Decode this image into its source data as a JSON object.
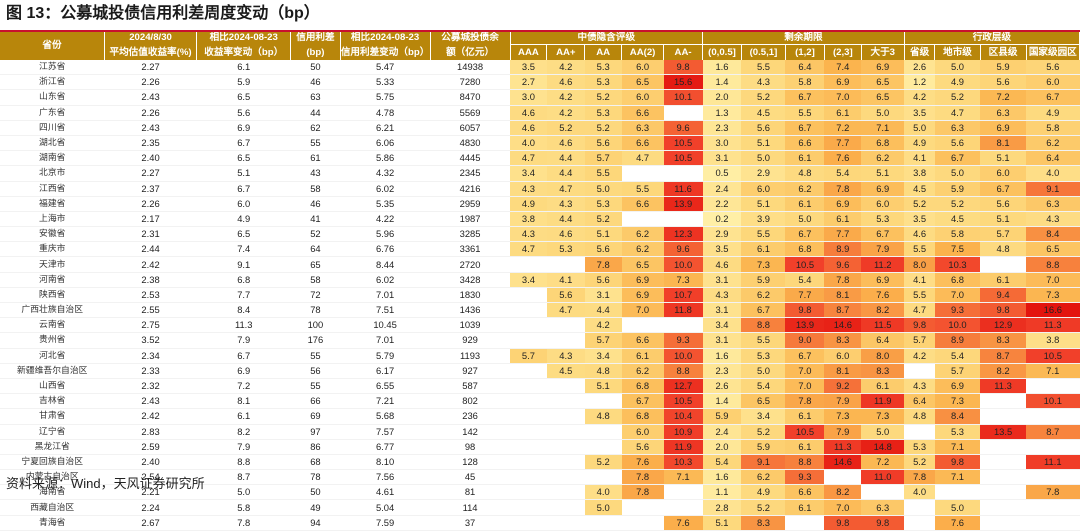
{
  "title": "图 13：公募城投债信用利差周度变动（bp）",
  "source": "资料来源：Wind，天风证券研究所",
  "header": {
    "province": "省份",
    "col_yield_date": "2024/8/30",
    "col_yield_sub": "平均估值收益率(%)",
    "col_yield_chg_date": "相比2024-08-23",
    "col_yield_chg_sub": "收益率变动（bp）",
    "col_spread_date": "信用利差",
    "col_spread_sub": "(bp)",
    "col_spread_chg_date": "相比2024-08-23",
    "col_spread_chg_sub": "信用利差变动（bp）",
    "col_balance_date": "公募城投债余",
    "col_balance_sub": "额（亿元）",
    "group_rating": "中债隐含评级",
    "group_term": "剩余期限",
    "group_admin": "行政层级",
    "rating_cols": [
      "AAA",
      "AA+",
      "AA",
      "AA(2)",
      "AA-"
    ],
    "term_cols": [
      "(0,0.5]",
      "(0.5,1]",
      "(1,2]",
      "(2,3]",
      "大于3"
    ],
    "admin_cols": [
      "省级",
      "地市级",
      "区县级",
      "国家级园区"
    ]
  },
  "colors": {
    "header_bg": "#b8860b",
    "title_rule": "#c8102e",
    "heat_low": "#fff0a8",
    "heat_mid": "#fbb24c",
    "heat_high": "#f1402a",
    "heat_max": "#e3140e"
  },
  "rows": [
    {
      "prov": "江苏省",
      "y": "2.27",
      "yc": "6.1",
      "s": "50",
      "sc": "5.47",
      "b": "14938",
      "r": [
        "3.5",
        "4.2",
        "5.3",
        "6.0",
        "9.8"
      ],
      "t": [
        "1.6",
        "5.5",
        "6.4",
        "7.4",
        "6.9"
      ],
      "a": [
        "2.6",
        "5.0",
        "5.9",
        "5.6"
      ]
    },
    {
      "prov": "浙江省",
      "y": "2.26",
      "yc": "5.9",
      "s": "46",
      "sc": "5.33",
      "b": "7280",
      "r": [
        "2.7",
        "4.6",
        "5.3",
        "6.5",
        "15.6"
      ],
      "t": [
        "1.4",
        "4.3",
        "5.8",
        "6.9",
        "6.5"
      ],
      "a": [
        "1.2",
        "4.9",
        "5.6",
        "6.0"
      ]
    },
    {
      "prov": "山东省",
      "y": "2.43",
      "yc": "6.5",
      "s": "63",
      "sc": "5.75",
      "b": "8470",
      "r": [
        "3.0",
        "4.2",
        "5.2",
        "6.0",
        "10.1"
      ],
      "t": [
        "2.0",
        "5.2",
        "6.7",
        "7.0",
        "6.5"
      ],
      "a": [
        "4.2",
        "5.2",
        "7.2",
        "6.7"
      ]
    },
    {
      "prov": "广东省",
      "y": "2.26",
      "yc": "5.6",
      "s": "44",
      "sc": "4.78",
      "b": "5569",
      "r": [
        "4.6",
        "4.2",
        "5.3",
        "6.6",
        ""
      ],
      "t": [
        "1.3",
        "4.5",
        "5.5",
        "6.1",
        "5.0"
      ],
      "a": [
        "3.5",
        "4.7",
        "6.3",
        "4.9"
      ]
    },
    {
      "prov": "四川省",
      "y": "2.43",
      "yc": "6.9",
      "s": "62",
      "sc": "6.21",
      "b": "6057",
      "r": [
        "4.6",
        "5.2",
        "5.2",
        "6.3",
        "9.6"
      ],
      "t": [
        "2.3",
        "5.6",
        "6.7",
        "7.2",
        "7.1"
      ],
      "a": [
        "5.0",
        "6.3",
        "6.9",
        "5.8"
      ]
    },
    {
      "prov": "湖北省",
      "y": "2.35",
      "yc": "6.7",
      "s": "55",
      "sc": "6.06",
      "b": "4830",
      "r": [
        "4.0",
        "4.6",
        "5.6",
        "6.6",
        "10.5"
      ],
      "t": [
        "3.0",
        "5.1",
        "6.6",
        "7.7",
        "6.8"
      ],
      "a": [
        "4.9",
        "5.6",
        "8.1",
        "6.2"
      ]
    },
    {
      "prov": "湖南省",
      "y": "2.40",
      "yc": "6.5",
      "s": "61",
      "sc": "5.86",
      "b": "4445",
      "r": [
        "4.7",
        "4.4",
        "5.7",
        "4.7",
        "10.5"
      ],
      "t": [
        "3.1",
        "5.0",
        "6.1",
        "7.6",
        "6.2"
      ],
      "a": [
        "4.1",
        "6.7",
        "5.1",
        "6.4"
      ]
    },
    {
      "prov": "北京市",
      "y": "2.27",
      "yc": "5.1",
      "s": "43",
      "sc": "4.32",
      "b": "2345",
      "r": [
        "3.4",
        "4.4",
        "5.5",
        "",
        ""
      ],
      "t": [
        "0.5",
        "2.9",
        "4.8",
        "5.4",
        "5.1"
      ],
      "a": [
        "3.8",
        "5.0",
        "6.0",
        "4.0"
      ]
    },
    {
      "prov": "江西省",
      "y": "2.37",
      "yc": "6.7",
      "s": "58",
      "sc": "6.02",
      "b": "4216",
      "r": [
        "4.3",
        "4.7",
        "5.0",
        "5.5",
        "11.6"
      ],
      "t": [
        "2.4",
        "6.0",
        "6.2",
        "7.8",
        "6.9"
      ],
      "a": [
        "4.5",
        "5.9",
        "6.7",
        "9.1"
      ]
    },
    {
      "prov": "福建省",
      "y": "2.26",
      "yc": "6.0",
      "s": "46",
      "sc": "5.35",
      "b": "2959",
      "r": [
        "4.9",
        "4.3",
        "5.3",
        "6.6",
        "13.9"
      ],
      "t": [
        "2.2",
        "5.1",
        "6.1",
        "6.9",
        "6.0"
      ],
      "a": [
        "5.2",
        "5.2",
        "5.6",
        "6.3"
      ]
    },
    {
      "prov": "上海市",
      "y": "2.17",
      "yc": "4.9",
      "s": "41",
      "sc": "4.22",
      "b": "1987",
      "r": [
        "3.8",
        "4.4",
        "5.2",
        "",
        ""
      ],
      "t": [
        "0.2",
        "3.9",
        "5.0",
        "6.1",
        "5.3"
      ],
      "a": [
        "3.5",
        "4.5",
        "5.1",
        "4.3"
      ]
    },
    {
      "prov": "安徽省",
      "y": "2.31",
      "yc": "6.5",
      "s": "52",
      "sc": "5.96",
      "b": "3285",
      "r": [
        "4.3",
        "4.6",
        "5.1",
        "6.2",
        "12.3"
      ],
      "t": [
        "2.9",
        "5.5",
        "6.7",
        "7.7",
        "6.7"
      ],
      "a": [
        "4.6",
        "5.8",
        "5.7",
        "8.4"
      ]
    },
    {
      "prov": "重庆市",
      "y": "2.44",
      "yc": "7.4",
      "s": "64",
      "sc": "6.76",
      "b": "3361",
      "r": [
        "4.7",
        "5.3",
        "5.6",
        "6.2",
        "9.6"
      ],
      "t": [
        "3.5",
        "6.1",
        "6.8",
        "8.9",
        "7.9"
      ],
      "a": [
        "5.5",
        "7.5",
        "4.8",
        "6.5"
      ]
    },
    {
      "prov": "天津市",
      "y": "2.42",
      "yc": "9.1",
      "s": "65",
      "sc": "8.44",
      "b": "2720",
      "r": [
        "",
        "",
        "7.8",
        "6.5",
        "10.0"
      ],
      "t": [
        "4.6",
        "7.3",
        "10.5",
        "9.6",
        "11.2"
      ],
      "a": [
        "8.0",
        "10.3",
        "",
        "8.8"
      ]
    },
    {
      "prov": "河南省",
      "y": "2.38",
      "yc": "6.8",
      "s": "58",
      "sc": "6.02",
      "b": "3428",
      "r": [
        "3.4",
        "4.1",
        "5.6",
        "6.9",
        "7.3"
      ],
      "t": [
        "3.1",
        "5.9",
        "5.4",
        "7.8",
        "6.9"
      ],
      "a": [
        "4.1",
        "6.8",
        "6.1",
        "7.0"
      ]
    },
    {
      "prov": "陕西省",
      "y": "2.53",
      "yc": "7.7",
      "s": "72",
      "sc": "7.01",
      "b": "1830",
      "r": [
        "",
        "5.6",
        "3.1",
        "6.9",
        "10.7"
      ],
      "t": [
        "4.3",
        "6.2",
        "7.7",
        "8.1",
        "7.6"
      ],
      "a": [
        "5.5",
        "7.0",
        "9.4",
        "7.3"
      ]
    },
    {
      "prov": "广西壮族自治区",
      "y": "2.55",
      "yc": "8.4",
      "s": "78",
      "sc": "7.51",
      "b": "1436",
      "r": [
        "",
        "4.7",
        "4.4",
        "7.0",
        "11.8"
      ],
      "t": [
        "3.1",
        "6.7",
        "9.8",
        "8.7",
        "8.2"
      ],
      "a": [
        "4.7",
        "9.3",
        "9.8",
        "16.6"
      ]
    },
    {
      "prov": "云南省",
      "y": "2.75",
      "yc": "11.3",
      "s": "100",
      "sc": "10.45",
      "b": "1039",
      "r": [
        "",
        "",
        "4.2",
        "",
        ""
      ],
      "t": [
        "3.4",
        "8.8",
        "13.9",
        "14.6",
        "11.5"
      ],
      "a": [
        "9.8",
        "10.0",
        "12.9",
        "11.3"
      ]
    },
    {
      "prov": "贵州省",
      "y": "3.52",
      "yc": "7.9",
      "s": "176",
      "sc": "7.01",
      "b": "929",
      "r": [
        "",
        "",
        "5.7",
        "6.6",
        "9.3"
      ],
      "t": [
        "3.1",
        "5.5",
        "9.0",
        "8.3",
        "6.4"
      ],
      "a": [
        "5.7",
        "8.9",
        "8.3",
        "3.8"
      ]
    },
    {
      "prov": "河北省",
      "y": "2.34",
      "yc": "6.7",
      "s": "55",
      "sc": "5.79",
      "b": "1193",
      "r": [
        "5.7",
        "4.3",
        "3.4",
        "6.1",
        "10.0"
      ],
      "t": [
        "1.6",
        "5.3",
        "6.7",
        "6.0",
        "8.0"
      ],
      "a": [
        "4.2",
        "5.4",
        "8.7",
        "10.5"
      ]
    },
    {
      "prov": "新疆维吾尔自治区",
      "y": "2.33",
      "yc": "6.9",
      "s": "56",
      "sc": "6.17",
      "b": "927",
      "r": [
        "",
        "4.5",
        "4.8",
        "6.2",
        "8.8"
      ],
      "t": [
        "2.3",
        "5.0",
        "7.0",
        "8.1",
        "8.3"
      ],
      "a": [
        "",
        "5.7",
        "8.2",
        "7.1"
      ]
    },
    {
      "prov": "山西省",
      "y": "2.32",
      "yc": "7.2",
      "s": "55",
      "sc": "6.55",
      "b": "587",
      "r": [
        "",
        "",
        "5.1",
        "6.8",
        "12.7"
      ],
      "t": [
        "2.6",
        "5.4",
        "7.0",
        "9.2",
        "6.1"
      ],
      "a": [
        "4.3",
        "6.9",
        "11.3",
        ""
      ]
    },
    {
      "prov": "吉林省",
      "y": "2.43",
      "yc": "8.1",
      "s": "66",
      "sc": "7.21",
      "b": "802",
      "r": [
        "",
        "",
        "",
        "6.7",
        "10.5"
      ],
      "t": [
        "1.4",
        "6.5",
        "7.8",
        "7.9",
        "11.9"
      ],
      "a": [
        "6.4",
        "7.3",
        "",
        "10.1"
      ]
    },
    {
      "prov": "甘肃省",
      "y": "2.42",
      "yc": "6.1",
      "s": "69",
      "sc": "5.68",
      "b": "236",
      "r": [
        "",
        "",
        "4.8",
        "6.8",
        "10.4"
      ],
      "t": [
        "5.9",
        "3.4",
        "6.1",
        "7.3",
        "7.3"
      ],
      "a": [
        "4.8",
        "8.4",
        "",
        ""
      ]
    },
    {
      "prov": "辽宁省",
      "y": "2.83",
      "yc": "8.2",
      "s": "97",
      "sc": "7.57",
      "b": "142",
      "r": [
        "",
        "",
        "",
        "6.0",
        "10.9"
      ],
      "t": [
        "2.4",
        "5.2",
        "10.5",
        "7.9",
        "5.0"
      ],
      "a": [
        "",
        "5.3",
        "13.5",
        "8.7"
      ]
    },
    {
      "prov": "黑龙江省",
      "y": "2.59",
      "yc": "7.9",
      "s": "86",
      "sc": "6.77",
      "b": "98",
      "r": [
        "",
        "",
        "",
        "5.6",
        "11.9"
      ],
      "t": [
        "2.0",
        "5.9",
        "6.1",
        "11.3",
        "14.8"
      ],
      "a": [
        "5.3",
        "7.1",
        "",
        ""
      ]
    },
    {
      "prov": "宁夏回族自治区",
      "y": "2.40",
      "yc": "8.8",
      "s": "68",
      "sc": "8.10",
      "b": "128",
      "r": [
        "",
        "",
        "5.2",
        "7.6",
        "10.3"
      ],
      "t": [
        "5.4",
        "9.1",
        "8.8",
        "14.6",
        "7.2"
      ],
      "a": [
        "5.2",
        "9.8",
        "",
        "11.1"
      ]
    },
    {
      "prov": "内蒙古自治区",
      "y": "2.54",
      "yc": "8.7",
      "s": "78",
      "sc": "7.56",
      "b": "45",
      "r": [
        "",
        "",
        "",
        "7.8",
        "7.1"
      ],
      "t": [
        "1.6",
        "6.2",
        "9.3",
        "",
        "11.0"
      ],
      "a": [
        "7.8",
        "7.1",
        "",
        ""
      ]
    },
    {
      "prov": "海南省",
      "y": "2.21",
      "yc": "5.0",
      "s": "50",
      "sc": "4.61",
      "b": "81",
      "r": [
        "",
        "",
        "4.0",
        "7.8",
        ""
      ],
      "t": [
        "1.1",
        "4.9",
        "6.6",
        "8.2",
        ""
      ],
      "a": [
        "4.0",
        "",
        "",
        "7.8"
      ]
    },
    {
      "prov": "西藏自治区",
      "y": "2.24",
      "yc": "5.8",
      "s": "49",
      "sc": "5.04",
      "b": "114",
      "r": [
        "",
        "",
        "5.0",
        "",
        ""
      ],
      "t": [
        "2.8",
        "5.2",
        "6.1",
        "7.0",
        "6.3"
      ],
      "a": [
        "",
        "5.0",
        "",
        ""
      ]
    },
    {
      "prov": "青海省",
      "y": "2.67",
      "yc": "7.8",
      "s": "94",
      "sc": "7.59",
      "b": "37",
      "r": [
        "",
        "",
        "",
        "",
        "7.6"
      ],
      "t": [
        "5.1",
        "8.3",
        "",
        "9.8",
        "9.8"
      ],
      "a": [
        "",
        "7.6",
        "",
        ""
      ]
    }
  ]
}
